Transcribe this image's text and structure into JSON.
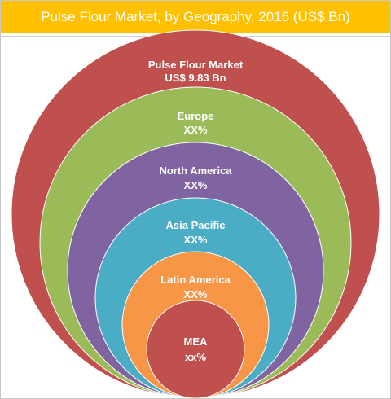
{
  "title": "Pulse Flour Market, by Geography, 2016 (US$ Bn)",
  "rings": [
    {
      "label": "Pulse Flour Market",
      "value": "US$ 9.83 Bn",
      "color": "#c0504d"
    },
    {
      "label": "Europe",
      "value": "XX%",
      "color": "#9bbb59"
    },
    {
      "label": "North America",
      "value": "XX%",
      "color": "#8064a2"
    },
    {
      "label": "Asia Pacific",
      "value": "XX%",
      "color": "#4bacc6"
    },
    {
      "label": "Latin America",
      "value": "XX%",
      "color": "#f79646"
    },
    {
      "label": "MEA",
      "value": "xx%",
      "color": "#c0504d"
    }
  ]
}
